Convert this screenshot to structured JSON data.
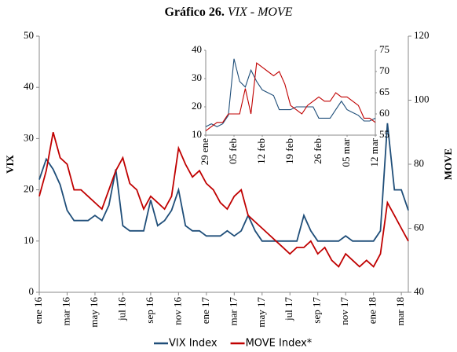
{
  "chart_data": [
    {
      "type": "line",
      "title": "Gráfico 26.",
      "subtitle": "VIX - MOVE",
      "ylabel": "VIX",
      "y2label": "MOVE",
      "categories": [
        "ene 16",
        null,
        null,
        null,
        "mar 16",
        null,
        null,
        null,
        "may 16",
        null,
        null,
        null,
        "jul 16",
        null,
        null,
        null,
        "sep 16",
        null,
        null,
        null,
        "nov 16",
        null,
        null,
        null,
        "ene 17",
        null,
        null,
        null,
        "mar 17",
        null,
        null,
        null,
        "may 17",
        null,
        null,
        null,
        "jul 17",
        null,
        null,
        null,
        "sep 17",
        null,
        null,
        null,
        "nov 17",
        null,
        null,
        null,
        "ene 18",
        null,
        null,
        null,
        "mar 18",
        null
      ],
      "series": [
        {
          "name": "VIX Index",
          "color": "#1f4e79",
          "values": [
            22,
            26,
            24,
            21,
            16,
            14,
            14,
            14,
            15,
            14,
            17,
            24,
            13,
            12,
            12,
            12,
            18,
            13,
            14,
            16,
            20,
            13,
            12,
            12,
            11,
            11,
            11,
            12,
            11,
            12,
            15,
            12,
            10,
            10,
            10,
            10,
            10,
            10,
            15,
            12,
            10,
            10,
            10,
            10,
            11,
            10,
            10,
            10,
            10,
            12,
            33,
            20,
            20,
            16
          ]
        },
        {
          "name": "MOVE Index*",
          "color": "#c00000",
          "axis": "y2",
          "values": [
            70,
            78,
            90,
            82,
            80,
            72,
            72,
            70,
            68,
            66,
            72,
            78,
            82,
            74,
            72,
            66,
            70,
            68,
            66,
            70,
            85,
            80,
            76,
            78,
            74,
            72,
            68,
            66,
            70,
            72,
            64,
            62,
            60,
            58,
            56,
            54,
            52,
            54,
            54,
            56,
            52,
            54,
            50,
            48,
            52,
            50,
            48,
            50,
            48,
            52,
            68,
            64,
            60,
            56
          ]
        }
      ],
      "ylim": [
        0,
        50
      ],
      "yticks": [
        0,
        10,
        20,
        30,
        40,
        50
      ],
      "y2lim": [
        40,
        120
      ],
      "y2ticks": [
        40,
        60,
        80,
        100,
        120
      ]
    },
    {
      "type": "line",
      "categories": [
        "29 ene",
        null,
        null,
        null,
        null,
        "05 feb",
        null,
        null,
        null,
        null,
        "12 feb",
        null,
        null,
        null,
        null,
        "19 feb",
        null,
        null,
        null,
        null,
        "26 feb",
        null,
        null,
        null,
        null,
        "05 mar",
        null,
        null,
        null,
        null,
        "12 mar"
      ],
      "series": [
        {
          "name": "VIX Index",
          "color": "#1f4e79",
          "values": [
            13,
            14,
            13,
            14,
            17,
            37,
            29,
            27,
            33,
            29,
            26,
            25,
            24,
            19,
            19,
            19,
            20,
            20,
            20,
            20,
            16,
            16,
            16,
            19,
            22,
            19,
            18,
            17,
            15,
            15,
            16
          ]
        },
        {
          "name": "MOVE Index*",
          "color": "#c00000",
          "axis": "y2",
          "values": [
            56,
            57,
            58,
            58,
            60,
            60,
            60,
            66,
            60,
            72,
            71,
            70,
            69,
            70,
            67,
            62,
            61,
            60,
            62,
            63,
            64,
            63,
            63,
            65,
            64,
            64,
            63,
            62,
            59,
            59,
            58
          ]
        }
      ],
      "ylim": [
        10,
        40
      ],
      "yticks": [
        10,
        20,
        30,
        40
      ],
      "y2lim": [
        55,
        75
      ],
      "y2ticks": [
        55,
        60,
        65,
        70,
        75
      ]
    }
  ]
}
